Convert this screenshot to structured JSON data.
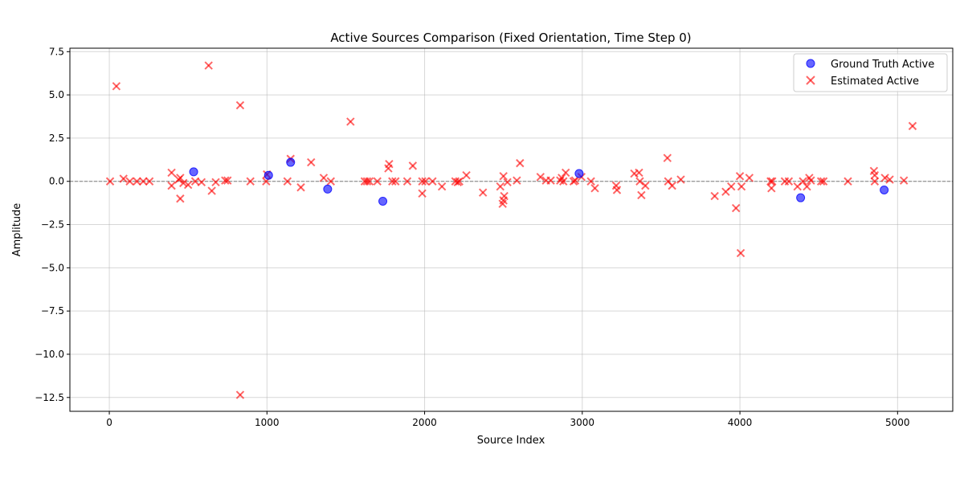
{
  "chart_data": {
    "type": "scatter",
    "title": "Active Sources Comparison (Fixed Orientation, Time Step 0)",
    "xlabel": "Source Index",
    "ylabel": "Amplitude",
    "xlim": [
      -250,
      5350
    ],
    "ylim": [
      -13.3,
      7.7
    ],
    "xticks": [
      0,
      1000,
      2000,
      3000,
      4000,
      5000
    ],
    "yticks": [
      7.5,
      5.0,
      2.5,
      0.0,
      -2.5,
      -5.0,
      -7.5,
      -10.0,
      -12.5
    ],
    "ytick_labels": [
      "7.5",
      "5.0",
      "2.5",
      "0.0",
      "−2.5",
      "−5.0",
      "−7.5",
      "−10.0",
      "−12.5"
    ],
    "grid": true,
    "zero_line": true,
    "legend_position": "top-right",
    "series": [
      {
        "name": "Ground Truth Active",
        "marker": "circle",
        "color": "#0000ff",
        "points": [
          [
            535,
            0.55
          ],
          [
            1010,
            0.35
          ],
          [
            1150,
            1.1
          ],
          [
            1385,
            -0.45
          ],
          [
            1735,
            -1.15
          ],
          [
            2980,
            0.45
          ],
          [
            4385,
            -0.95
          ],
          [
            4915,
            -0.5
          ]
        ]
      },
      {
        "name": "Estimated Active",
        "marker": "x",
        "color": "#ff0000",
        "points": [
          [
            5,
            0.0
          ],
          [
            45,
            5.5
          ],
          [
            90,
            0.15
          ],
          [
            130,
            0.0
          ],
          [
            175,
            0.0
          ],
          [
            215,
            0.0
          ],
          [
            255,
            0.0
          ],
          [
            395,
            0.5
          ],
          [
            395,
            -0.25
          ],
          [
            440,
            0.1
          ],
          [
            450,
            0.2
          ],
          [
            450,
            -1.0
          ],
          [
            470,
            -0.1
          ],
          [
            500,
            -0.2
          ],
          [
            545,
            0.0
          ],
          [
            585,
            -0.05
          ],
          [
            630,
            6.7
          ],
          [
            650,
            -0.55
          ],
          [
            675,
            -0.05
          ],
          [
            735,
            0.05
          ],
          [
            750,
            0.05
          ],
          [
            830,
            4.4
          ],
          [
            830,
            -12.35
          ],
          [
            895,
            0.0
          ],
          [
            995,
            0.0
          ],
          [
            1000,
            0.4
          ],
          [
            1130,
            0.0
          ],
          [
            1150,
            1.3
          ],
          [
            1215,
            -0.35
          ],
          [
            1280,
            1.1
          ],
          [
            1360,
            0.2
          ],
          [
            1405,
            0.0
          ],
          [
            1530,
            3.45
          ],
          [
            1620,
            0.0
          ],
          [
            1635,
            0.0
          ],
          [
            1650,
            0.0
          ],
          [
            1700,
            0.0
          ],
          [
            1770,
            0.75
          ],
          [
            1775,
            1.0
          ],
          [
            1795,
            0.0
          ],
          [
            1815,
            0.0
          ],
          [
            1890,
            0.0
          ],
          [
            1925,
            0.9
          ],
          [
            1985,
            -0.7
          ],
          [
            1985,
            0.0
          ],
          [
            2005,
            0.0
          ],
          [
            2050,
            0.0
          ],
          [
            2110,
            -0.3
          ],
          [
            2195,
            0.0
          ],
          [
            2210,
            -0.05
          ],
          [
            2220,
            0.0
          ],
          [
            2265,
            0.35
          ],
          [
            2370,
            -0.65
          ],
          [
            2480,
            -0.3
          ],
          [
            2495,
            -1.3
          ],
          [
            2500,
            -1.1
          ],
          [
            2500,
            0.3
          ],
          [
            2505,
            -0.85
          ],
          [
            2525,
            -0.05
          ],
          [
            2585,
            0.05
          ],
          [
            2605,
            1.05
          ],
          [
            2735,
            0.25
          ],
          [
            2770,
            0.05
          ],
          [
            2800,
            0.05
          ],
          [
            2860,
            0.05
          ],
          [
            2870,
            0.2
          ],
          [
            2880,
            0.0
          ],
          [
            2895,
            0.5
          ],
          [
            2945,
            0.0
          ],
          [
            2955,
            0.05
          ],
          [
            2995,
            0.25
          ],
          [
            3055,
            0.0
          ],
          [
            3080,
            -0.4
          ],
          [
            3215,
            -0.25
          ],
          [
            3220,
            -0.5
          ],
          [
            3330,
            0.45
          ],
          [
            3360,
            0.5
          ],
          [
            3365,
            0.0
          ],
          [
            3375,
            -0.8
          ],
          [
            3400,
            -0.25
          ],
          [
            3540,
            1.35
          ],
          [
            3545,
            0.0
          ],
          [
            3570,
            -0.25
          ],
          [
            3625,
            0.1
          ],
          [
            3840,
            -0.85
          ],
          [
            3910,
            -0.6
          ],
          [
            3945,
            -0.3
          ],
          [
            3975,
            -1.55
          ],
          [
            4000,
            0.3
          ],
          [
            4005,
            -4.15
          ],
          [
            4010,
            -0.3
          ],
          [
            4060,
            0.2
          ],
          [
            4195,
            0.0
          ],
          [
            4200,
            -0.4
          ],
          [
            4205,
            0.0
          ],
          [
            4285,
            0.0
          ],
          [
            4310,
            0.0
          ],
          [
            4365,
            -0.3
          ],
          [
            4400,
            0.0
          ],
          [
            4425,
            -0.3
          ],
          [
            4440,
            0.2
          ],
          [
            4450,
            0.05
          ],
          [
            4515,
            0.0
          ],
          [
            4530,
            0.0
          ],
          [
            4685,
            0.0
          ],
          [
            4850,
            0.6
          ],
          [
            4855,
            0.35
          ],
          [
            4855,
            0.0
          ],
          [
            4920,
            0.2
          ],
          [
            4950,
            0.1
          ],
          [
            5040,
            0.05
          ],
          [
            5095,
            3.2
          ]
        ]
      }
    ]
  }
}
